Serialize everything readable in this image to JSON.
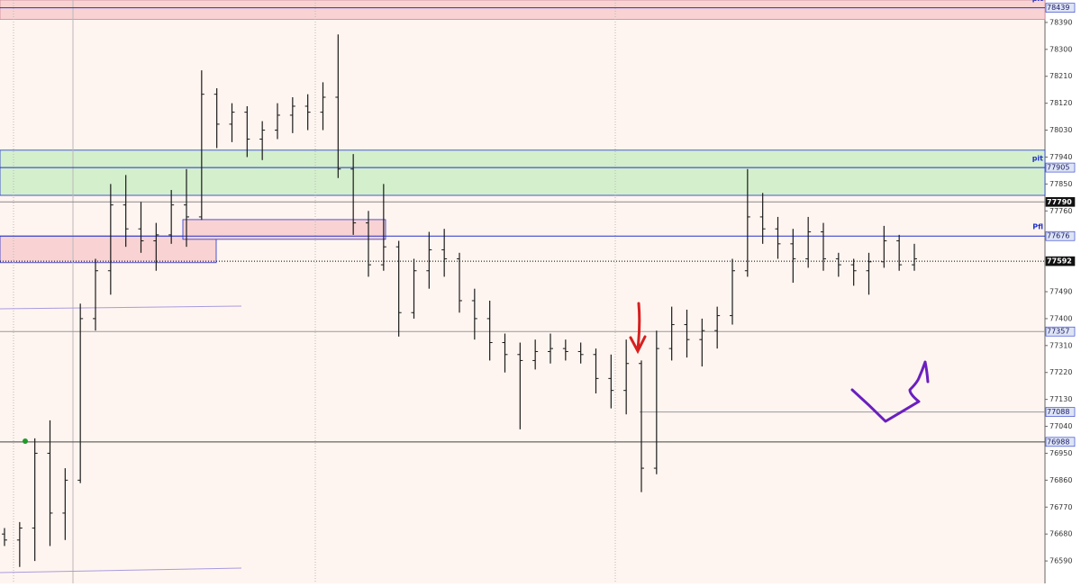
{
  "chart_data": {
    "type": "ohlc",
    "open": [
      76680,
      76660,
      76700,
      76950,
      76750,
      76860,
      77400,
      77560,
      77780,
      77700,
      77660,
      77680,
      77780,
      77740,
      78150,
      78050,
      78090,
      78000,
      78030,
      78080,
      78110,
      78090,
      78140,
      77900,
      77720,
      77580,
      77640,
      77420,
      77560,
      77630,
      77600,
      77460,
      77400,
      77320,
      77280,
      77260,
      77290,
      77300,
      77290,
      77280,
      77200,
      77160,
      77250,
      76900,
      77300,
      77380,
      77330,
      77360,
      77410,
      77560,
      77740,
      77700,
      77650,
      77600,
      77690,
      77600,
      77580,
      77560,
      77590,
      77660,
      77580
    ],
    "high": [
      76700,
      76720,
      77000,
      77060,
      76900,
      77450,
      77600,
      77850,
      77880,
      77790,
      77720,
      77830,
      77900,
      78230,
      78170,
      78120,
      78110,
      78060,
      78120,
      78140,
      78150,
      78190,
      78350,
      77950,
      77760,
      77850,
      77660,
      77600,
      77690,
      77700,
      77620,
      77500,
      77460,
      77350,
      77320,
      77330,
      77350,
      77330,
      77320,
      77300,
      77280,
      77330,
      77260,
      77360,
      77440,
      77430,
      77400,
      77440,
      77600,
      77900,
      77820,
      77740,
      77700,
      77740,
      77720,
      77620,
      77600,
      77620,
      77710,
      77680,
      77650
    ],
    "low": [
      76640,
      76570,
      76590,
      76640,
      76660,
      76850,
      77360,
      77480,
      77640,
      77620,
      77560,
      77650,
      77640,
      77730,
      77970,
      77990,
      77940,
      77930,
      78000,
      78020,
      78030,
      78030,
      77870,
      77680,
      77540,
      77560,
      77340,
      77400,
      77500,
      77540,
      77420,
      77330,
      77260,
      77220,
      77030,
      77230,
      77250,
      77260,
      77250,
      77150,
      77100,
      77080,
      76820,
      76880,
      77260,
      77270,
      77240,
      77300,
      77380,
      77540,
      77650,
      77600,
      77520,
      77570,
      77560,
      77540,
      77510,
      77480,
      77570,
      77560,
      77560
    ],
    "close": [
      76660,
      76700,
      76950,
      76750,
      76860,
      77400,
      77560,
      77780,
      77700,
      77660,
      77680,
      77780,
      77740,
      78150,
      78050,
      78090,
      78000,
      78030,
      78080,
      78110,
      78090,
      78140,
      77900,
      77720,
      77580,
      77640,
      77420,
      77560,
      77630,
      77600,
      77460,
      77400,
      77320,
      77280,
      77260,
      77290,
      77300,
      77290,
      77280,
      77200,
      77160,
      77250,
      76900,
      77300,
      77380,
      77330,
      77360,
      77410,
      77560,
      77740,
      77700,
      77650,
      77600,
      77690,
      77600,
      77580,
      77560,
      77590,
      77660,
      77580,
      77600
    ],
    "color": "#1a1a1a",
    "ylim": [
      76515,
      78465
    ],
    "yticks": [
      76590,
      76680,
      76770,
      76860,
      76950,
      77040,
      77130,
      77220,
      77310,
      77400,
      77490,
      77760,
      77850,
      77940,
      78030,
      78120,
      78210,
      78300,
      78390
    ],
    "zones": [
      {
        "from": 78400,
        "to": 78465,
        "color": "#f9d3d3"
      },
      {
        "from": 77812,
        "to": 77963,
        "color": "#d4efcc"
      },
      {
        "from": 77587,
        "to": 77676,
        "color": "#f9d3d3"
      },
      {
        "from": 77665,
        "to": 77731,
        "color": "#f9d3d3"
      }
    ],
    "levels": [
      {
        "value": 78439,
        "tag": "pit",
        "color": "#2233cc"
      },
      {
        "value": 77905,
        "tag": "pit",
        "color": "#2233cc"
      },
      {
        "value": 77790,
        "color": "#888888",
        "highlight": true
      },
      {
        "value": 77676,
        "tag": "Pfl",
        "color": "#2233cc"
      },
      {
        "value": 77592,
        "color": "#000000",
        "highlight": true
      },
      {
        "value": 77357,
        "color": "#999999"
      },
      {
        "value": 77088,
        "color": "#999999"
      },
      {
        "value": 76988,
        "color": "#444444"
      }
    ]
  }
}
